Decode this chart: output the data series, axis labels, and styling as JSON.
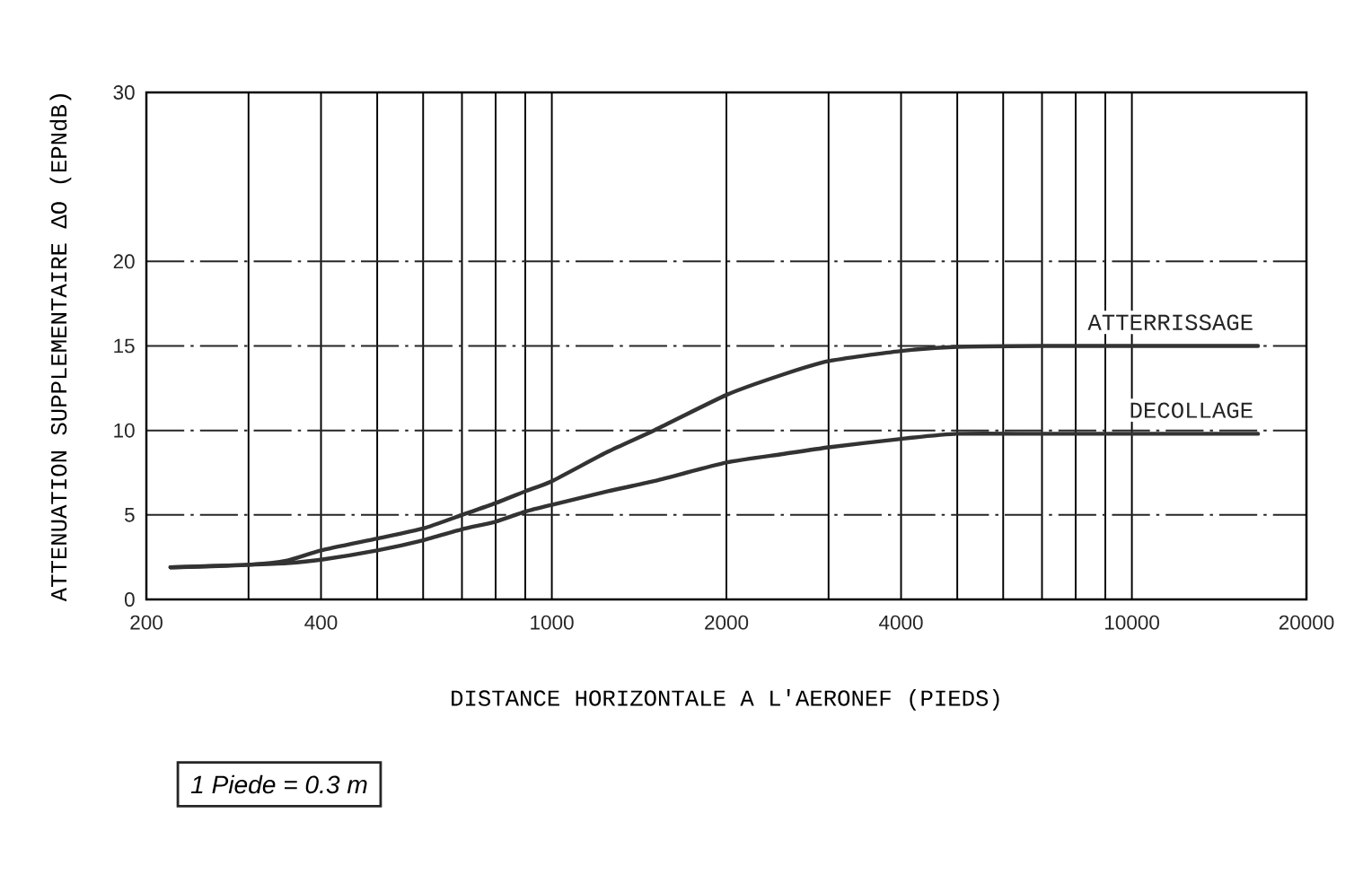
{
  "chart_data": {
    "type": "line",
    "xlabel": "DISTANCE HORIZONTALE A L'AERONEF (PIEDS)",
    "ylabel": "ATTENUATION SUPPLEMENTAIRE ΔO (EPNdB)",
    "annotations": [
      "1 Piede = 0.3 m"
    ],
    "log": "x",
    "xlim": [
      200,
      20000
    ],
    "ylim": [
      0,
      30
    ],
    "xticks": [
      200,
      {
        "value": 300,
        "label": null
      },
      400,
      {
        "value": 500,
        "label": null
      },
      {
        "value": 600,
        "label": null
      },
      {
        "value": 700,
        "label": null
      },
      {
        "value": 800,
        "label": null
      },
      {
        "value": 900,
        "label": null
      },
      1000,
      2000,
      {
        "value": 3000,
        "label": null
      },
      4000,
      {
        "value": 5000,
        "label": null
      },
      {
        "value": 6000,
        "label": null
      },
      {
        "value": 7000,
        "label": null
      },
      {
        "value": 8000,
        "label": null
      },
      {
        "value": 9000,
        "label": null
      },
      10000,
      20000
    ],
    "yticks": [
      0,
      5,
      10,
      15,
      20,
      30
    ],
    "grid": true,
    "line_style": "solid",
    "marker": "none",
    "series": [
      {
        "name": "ATTERRISSAGE",
        "color": "#333333",
        "x": [
          220,
          300,
          350,
          400,
          500,
          600,
          700,
          800,
          900,
          1000,
          1250,
          1500,
          2000,
          2500,
          3000,
          4000,
          5000,
          7000,
          10000,
          16500
        ],
        "values": [
          1.9,
          2.05,
          2.3,
          2.9,
          3.6,
          4.2,
          5.0,
          5.7,
          6.4,
          7.0,
          8.75,
          10.0,
          12.1,
          13.3,
          14.1,
          14.7,
          14.95,
          15.0,
          15.0,
          15.0
        ]
      },
      {
        "name": "DECOLLAGE",
        "color": "#333333",
        "x": [
          220,
          300,
          350,
          400,
          500,
          600,
          700,
          800,
          900,
          1000,
          1250,
          1500,
          2000,
          2500,
          3000,
          4000,
          5000,
          7000,
          10000,
          16500
        ],
        "values": [
          1.9,
          2.05,
          2.15,
          2.35,
          2.9,
          3.5,
          4.15,
          4.6,
          5.2,
          5.6,
          6.4,
          7.0,
          8.1,
          8.6,
          9.0,
          9.5,
          9.8,
          9.8,
          9.8,
          9.8
        ]
      }
    ]
  }
}
